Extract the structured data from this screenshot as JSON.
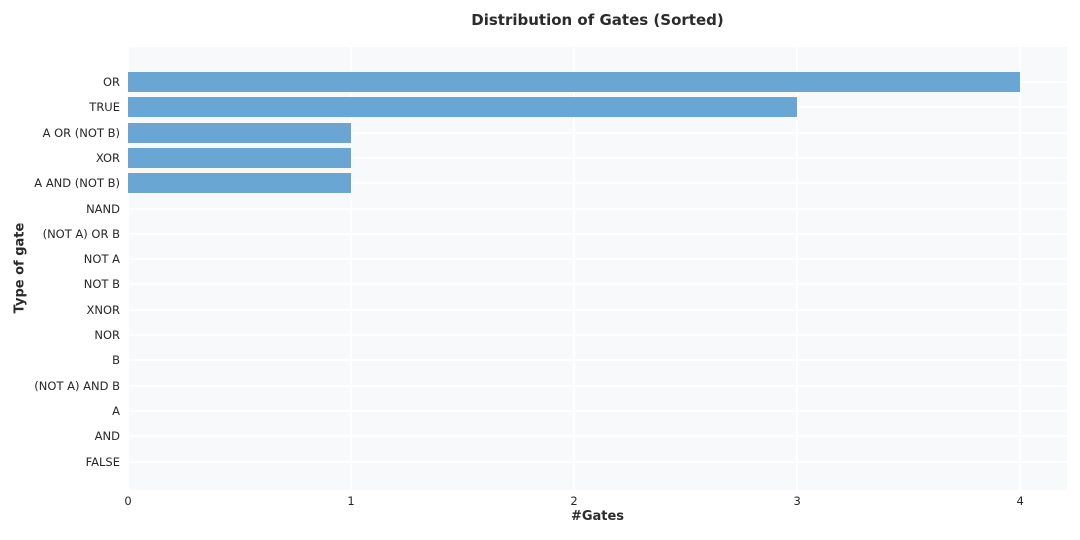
{
  "chart_data": {
    "type": "bar",
    "orientation": "horizontal",
    "title": "Distribution of Gates (Sorted)",
    "xlabel": "#Gates",
    "ylabel": "Type of gate",
    "categories": [
      "OR",
      "TRUE",
      "A OR (NOT B)",
      "XOR",
      "A AND (NOT B)",
      "NAND",
      "(NOT A) OR B",
      "NOT A",
      "NOT B",
      "XNOR",
      "NOR",
      "B",
      "(NOT A) AND B",
      "A",
      "AND",
      "FALSE"
    ],
    "values": [
      4,
      3,
      1,
      1,
      1,
      0,
      0,
      0,
      0,
      0,
      0,
      0,
      0,
      0,
      0,
      0
    ],
    "xticks": [
      0,
      1,
      2,
      3,
      4
    ],
    "xlim": [
      0,
      4.21
    ],
    "grid": true,
    "legend_position": "none",
    "colors": {
      "bar": "#6AA6D4",
      "plot_bg": "#F7F9FB",
      "grid": "#FFFFFF",
      "text": "#262626"
    }
  }
}
